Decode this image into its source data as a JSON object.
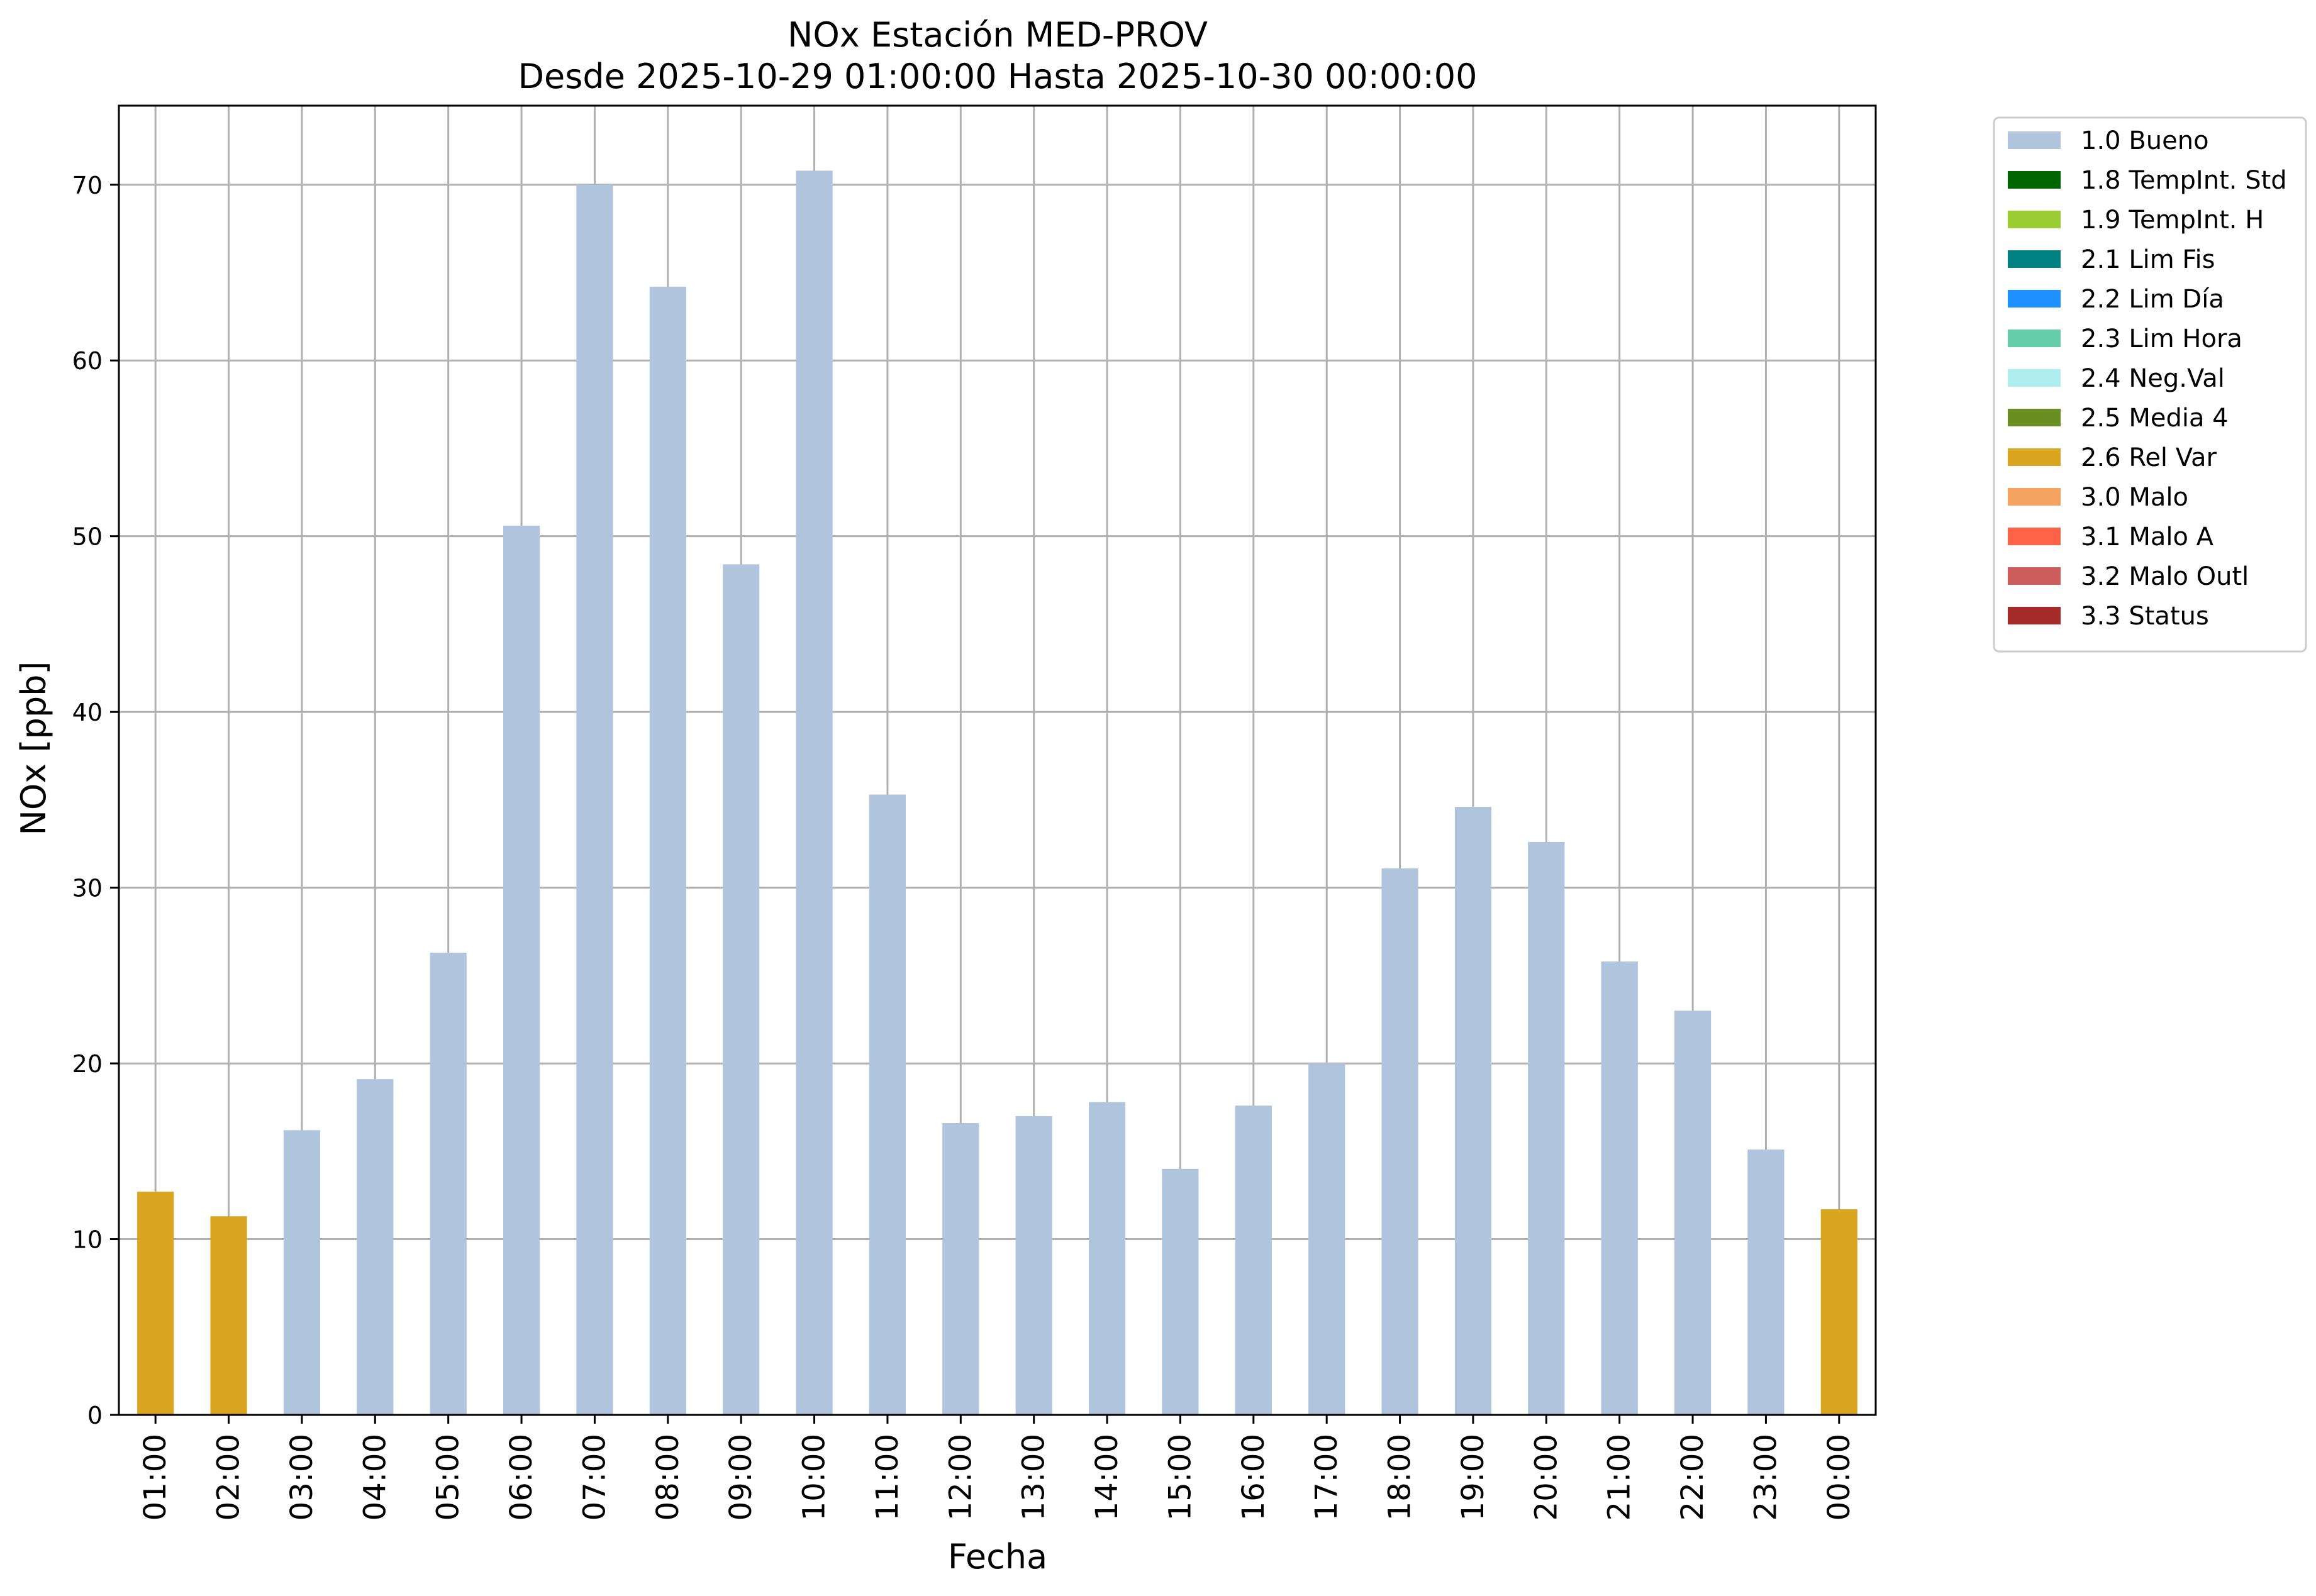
{
  "chart_data": {
    "type": "bar",
    "title": "NOx Estación MED-PROV",
    "subtitle": "Desde 2025-10-29 01:00:00 Hasta 2025-10-30 00:00:00",
    "xlabel": "Fecha",
    "ylabel": "NOx [ppb]",
    "ylim": [
      0,
      74.5
    ],
    "yticks": [
      0,
      10,
      20,
      30,
      40,
      50,
      60,
      70
    ],
    "grid": true,
    "legend_position": "outside-top-right",
    "categories": [
      "01:00",
      "02:00",
      "03:00",
      "04:00",
      "05:00",
      "06:00",
      "07:00",
      "08:00",
      "09:00",
      "10:00",
      "11:00",
      "12:00",
      "13:00",
      "14:00",
      "15:00",
      "16:00",
      "17:00",
      "18:00",
      "19:00",
      "20:00",
      "21:00",
      "22:00",
      "23:00",
      "00:00"
    ],
    "values": [
      12.7,
      11.3,
      16.2,
      19.1,
      26.3,
      50.6,
      70.0,
      64.2,
      48.4,
      70.8,
      35.3,
      16.6,
      17.0,
      17.8,
      14.0,
      17.6,
      20.0,
      31.1,
      34.6,
      32.6,
      25.8,
      23.0,
      15.1,
      11.7
    ],
    "flags": [
      "2.6 Rel Var",
      "2.6 Rel Var",
      "1.0 Bueno",
      "1.0 Bueno",
      "1.0 Bueno",
      "1.0 Bueno",
      "1.0 Bueno",
      "1.0 Bueno",
      "1.0 Bueno",
      "1.0 Bueno",
      "1.0 Bueno",
      "1.0 Bueno",
      "1.0 Bueno",
      "1.0 Bueno",
      "1.0 Bueno",
      "1.0 Bueno",
      "1.0 Bueno",
      "1.0 Bueno",
      "1.0 Bueno",
      "1.0 Bueno",
      "1.0 Bueno",
      "1.0 Bueno",
      "1.0 Bueno",
      "2.6 Rel Var"
    ],
    "legend": [
      {
        "label": "1.0 Bueno",
        "color": "#b0c4de"
      },
      {
        "label": "1.8 TempInt. Std",
        "color": "#006400"
      },
      {
        "label": "1.9 TempInt. H",
        "color": "#9acd32"
      },
      {
        "label": "2.1 Lim Fis",
        "color": "#008080"
      },
      {
        "label": "2.2 Lim Día",
        "color": "#1e90ff"
      },
      {
        "label": "2.3 Lim Hora",
        "color": "#66cdaa"
      },
      {
        "label": "2.4 Neg.Val",
        "color": "#afeeee"
      },
      {
        "label": "2.5 Media 4",
        "color": "#6b8e23"
      },
      {
        "label": "2.6 Rel Var",
        "color": "#daa520"
      },
      {
        "label": "3.0 Malo",
        "color": "#f4a460"
      },
      {
        "label": "3.1 Malo A",
        "color": "#ff6347"
      },
      {
        "label": "3.2 Malo Outl",
        "color": "#cd5c5c"
      },
      {
        "label": "3.3 Status",
        "color": "#a52a2a"
      }
    ]
  }
}
